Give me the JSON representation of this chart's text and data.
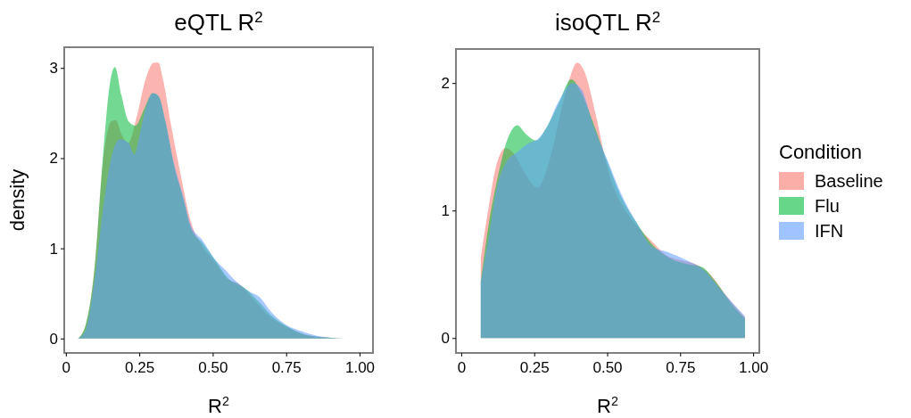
{
  "chart_data": [
    {
      "type": "area",
      "title": "eQTL R$^{2}$",
      "xlabel": "R$^{2}$",
      "ylabel": "density",
      "xlim": [
        -0.0025,
        1.0425
      ],
      "ylim": [
        -0.15,
        3.22
      ],
      "xticks": [
        0,
        {
          "value": 0.25,
          "label": "0.25"
        },
        {
          "value": 0.5,
          "label": "0.50"
        },
        {
          "value": 0.75,
          "label": "0.75"
        },
        {
          "value": 1,
          "label": "1.00"
        }
      ],
      "yticks": [
        0,
        1,
        2,
        3
      ],
      "grid": false,
      "legend": false,
      "series": [
        {
          "color": "#f8766d",
          "x": [
            0.041,
            0.068,
            0.097,
            0.126,
            0.155,
            0.17,
            0.189,
            0.213,
            0.242,
            0.271,
            0.3,
            0.315,
            0.329,
            0.358,
            0.387,
            0.426,
            0.465,
            0.504,
            0.552,
            0.591,
            0.64,
            0.688,
            0.756,
            0.833,
            0.95
          ],
          "values": [
            0,
            0.15,
            0.76,
            1.94,
            2.41,
            2.42,
            2.27,
            2.17,
            2.47,
            2.87,
            3.06,
            3.06,
            2.9,
            2.37,
            1.88,
            1.29,
            1.02,
            0.86,
            0.66,
            0.6,
            0.43,
            0.26,
            0.12,
            0.03,
            0
          ]
        },
        {
          "color": "#00ba38",
          "x": [
            0.041,
            0.068,
            0.097,
            0.126,
            0.15,
            0.167,
            0.189,
            0.213,
            0.237,
            0.266,
            0.296,
            0.315,
            0.339,
            0.368,
            0.397,
            0.426,
            0.465,
            0.504,
            0.562,
            0.581,
            0.62,
            0.659,
            0.698,
            0.756,
            0.833,
            0.95
          ],
          "values": [
            0,
            0.16,
            0.76,
            2.01,
            2.83,
            3.01,
            2.7,
            2.41,
            2.36,
            2.54,
            2.72,
            2.69,
            2.4,
            1.92,
            1.58,
            1.22,
            1.06,
            0.89,
            0.64,
            0.61,
            0.53,
            0.4,
            0.26,
            0.13,
            0.03,
            0
          ]
        },
        {
          "color": "#619cff",
          "x": [
            0.041,
            0.068,
            0.097,
            0.126,
            0.155,
            0.184,
            0.213,
            0.233,
            0.252,
            0.271,
            0.296,
            0.315,
            0.339,
            0.368,
            0.397,
            0.426,
            0.465,
            0.504,
            0.543,
            0.581,
            0.62,
            0.659,
            0.698,
            0.746,
            0.804,
            0.872,
            0.95
          ],
          "values": [
            0,
            0.1,
            0.63,
            1.42,
            2.01,
            2.21,
            2.17,
            2.04,
            2.27,
            2.54,
            2.72,
            2.69,
            2.41,
            1.94,
            1.61,
            1.25,
            1.09,
            0.89,
            0.76,
            0.63,
            0.53,
            0.46,
            0.3,
            0.16,
            0.08,
            0.02,
            0
          ]
        }
      ]
    },
    {
      "type": "area",
      "title": "isoQTL R$^{2}$",
      "xlabel": "R$^{2}$",
      "legend_title": "Condition",
      "xlim": [
        -0.015,
        1.018
      ],
      "ylim": [
        -0.11,
        2.26
      ],
      "xticks": [
        0,
        {
          "value": 0.25,
          "label": "0.25"
        },
        {
          "value": 0.5,
          "label": "0.50"
        },
        {
          "value": 0.75,
          "label": "0.75"
        },
        {
          "value": 1,
          "label": "1.00"
        }
      ],
      "yticks": [
        0,
        1,
        2
      ],
      "grid": false,
      "legend": "right",
      "series": [
        {
          "name": "Baseline",
          "color": "#f8766d",
          "x": [
            0.067,
            0.092,
            0.122,
            0.152,
            0.182,
            0.212,
            0.242,
            0.262,
            0.282,
            0.312,
            0.342,
            0.372,
            0.397,
            0.422,
            0.462,
            0.502,
            0.552,
            0.602,
            0.652,
            0.702,
            0.752,
            0.802,
            0.852,
            0.912,
            0.972
          ],
          "values": [
            0.63,
            1.0,
            1.37,
            1.49,
            1.44,
            1.32,
            1.21,
            1.18,
            1.25,
            1.48,
            1.78,
            2.04,
            2.16,
            2.09,
            1.74,
            1.32,
            1.04,
            0.88,
            0.76,
            0.65,
            0.61,
            0.58,
            0.5,
            0.32,
            0.16
          ]
        },
        {
          "name": "Flu",
          "color": "#00ba38",
          "x": [
            0.067,
            0.092,
            0.122,
            0.162,
            0.192,
            0.222,
            0.257,
            0.292,
            0.332,
            0.377,
            0.412,
            0.452,
            0.502,
            0.552,
            0.602,
            0.652,
            0.712,
            0.772,
            0.822,
            0.872,
            0.922,
            0.972
          ],
          "values": [
            0.44,
            0.86,
            1.23,
            1.58,
            1.67,
            1.6,
            1.55,
            1.65,
            1.83,
            2.03,
            1.92,
            1.69,
            1.37,
            1.09,
            0.9,
            0.74,
            0.63,
            0.58,
            0.56,
            0.44,
            0.28,
            0.15
          ]
        },
        {
          "name": "IFN",
          "color": "#619cff",
          "x": [
            0.067,
            0.092,
            0.122,
            0.152,
            0.192,
            0.232,
            0.262,
            0.292,
            0.332,
            0.382,
            0.412,
            0.452,
            0.502,
            0.552,
            0.602,
            0.652,
            0.712,
            0.772,
            0.832,
            0.892,
            0.972
          ],
          "values": [
            0.44,
            0.76,
            1.18,
            1.37,
            1.46,
            1.53,
            1.56,
            1.65,
            1.85,
            2.0,
            1.95,
            1.67,
            1.39,
            1.11,
            0.9,
            0.72,
            0.67,
            0.61,
            0.53,
            0.37,
            0.17
          ]
        }
      ]
    }
  ]
}
